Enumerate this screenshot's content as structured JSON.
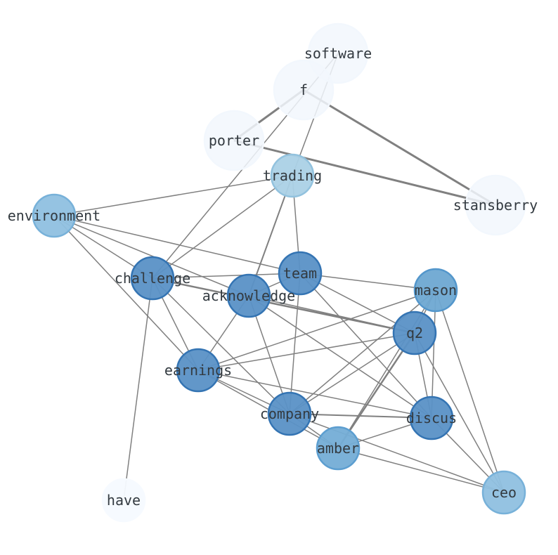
{
  "nodes": [
    {
      "id": "software",
      "label": "software",
      "color": "#f2f7fd",
      "stroke": "#f2f7fd",
      "size": "large"
    },
    {
      "id": "f",
      "label": "f",
      "color": "#f2f7fd",
      "stroke": "#f2f7fd",
      "size": "large"
    },
    {
      "id": "porter",
      "label": "porter",
      "color": "#f2f7fd",
      "stroke": "#f2f7fd",
      "size": "large"
    },
    {
      "id": "trading",
      "label": "trading",
      "color": "#abd1e6",
      "stroke": "#92c2de",
      "size": "small"
    },
    {
      "id": "stansberry",
      "label": "stansberry",
      "color": "#f2f7fd",
      "stroke": "#f2f7fd",
      "size": "large"
    },
    {
      "id": "environment",
      "label": "environment",
      "color": "#8fc0e0",
      "stroke": "#77b1d9",
      "size": "small"
    },
    {
      "id": "challenge",
      "label": "challenge",
      "color": "#5a91c6",
      "stroke": "#3474b3",
      "size": "small"
    },
    {
      "id": "team",
      "label": "team",
      "color": "#5a91c6",
      "stroke": "#3474b3",
      "size": "small"
    },
    {
      "id": "acknowledge",
      "label": "acknowledge",
      "color": "#5a91c6",
      "stroke": "#3474b3",
      "size": "small"
    },
    {
      "id": "mason",
      "label": "mason",
      "color": "#6ea8d2",
      "stroke": "#5396cb",
      "size": "small"
    },
    {
      "id": "q2",
      "label": "q2",
      "color": "#5a91c6",
      "stroke": "#3474b3",
      "size": "small"
    },
    {
      "id": "earnings",
      "label": "earnings",
      "color": "#5a91c6",
      "stroke": "#3474b3",
      "size": "small"
    },
    {
      "id": "company",
      "label": "company",
      "color": "#5a91c6",
      "stroke": "#3474b3",
      "size": "small"
    },
    {
      "id": "discus",
      "label": "discus",
      "color": "#5a91c6",
      "stroke": "#3474b3",
      "size": "small"
    },
    {
      "id": "amber",
      "label": "amber",
      "color": "#74add6",
      "stroke": "#5c9ed0",
      "size": "small"
    },
    {
      "id": "ceo",
      "label": "ceo",
      "color": "#8fc0e0",
      "stroke": "#77b1d9",
      "size": "small"
    },
    {
      "id": "have",
      "label": "have",
      "color": "#f6faff",
      "stroke": "#f6faff",
      "size": "small"
    }
  ],
  "edges": [
    [
      "f",
      "porter",
      3
    ],
    [
      "f",
      "stansberry",
      3
    ],
    [
      "porter",
      "stansberry",
      3
    ],
    [
      "software",
      "challenge",
      1.5
    ],
    [
      "software",
      "trading",
      1.5
    ],
    [
      "trading",
      "environment",
      1.5
    ],
    [
      "trading",
      "challenge",
      1.5
    ],
    [
      "trading",
      "acknowledge",
      2
    ],
    [
      "trading",
      "team",
      1.5
    ],
    [
      "environment",
      "team",
      1.5
    ],
    [
      "environment",
      "acknowledge",
      1.5
    ],
    [
      "environment",
      "challenge",
      1.5
    ],
    [
      "environment",
      "earnings",
      1.5
    ],
    [
      "challenge",
      "team",
      1.5
    ],
    [
      "challenge",
      "q2",
      2.5
    ],
    [
      "challenge",
      "earnings",
      1.5
    ],
    [
      "challenge",
      "company",
      1.5
    ],
    [
      "challenge",
      "have",
      1.5
    ],
    [
      "team",
      "acknowledge",
      1.5
    ],
    [
      "team",
      "mason",
      1.5
    ],
    [
      "team",
      "q2",
      1.5
    ],
    [
      "team",
      "discus",
      1.5
    ],
    [
      "team",
      "company",
      1.5
    ],
    [
      "acknowledge",
      "earnings",
      1.5
    ],
    [
      "acknowledge",
      "company",
      1.5
    ],
    [
      "acknowledge",
      "discus",
      1.5
    ],
    [
      "acknowledge",
      "q2",
      1.5
    ],
    [
      "mason",
      "earnings",
      1.5
    ],
    [
      "mason",
      "company",
      1.5
    ],
    [
      "mason",
      "q2",
      1.5
    ],
    [
      "mason",
      "discus",
      1.5
    ],
    [
      "mason",
      "ceo",
      1.5
    ],
    [
      "mason",
      "amber",
      1.5
    ],
    [
      "q2",
      "earnings",
      1.5
    ],
    [
      "q2",
      "company",
      1.5
    ],
    [
      "q2",
      "amber",
      2.5
    ],
    [
      "q2",
      "discus",
      1.5
    ],
    [
      "q2",
      "ceo",
      1.5
    ],
    [
      "earnings",
      "company",
      1.5
    ],
    [
      "earnings",
      "amber",
      1.5
    ],
    [
      "earnings",
      "discus",
      1.5
    ],
    [
      "company",
      "discus",
      2
    ],
    [
      "company",
      "amber",
      1.5
    ],
    [
      "company",
      "ceo",
      1.5
    ],
    [
      "discus",
      "amber",
      1.5
    ],
    [
      "discus",
      "ceo",
      1.5
    ],
    [
      "amber",
      "ceo",
      1.5
    ]
  ],
  "edge_color": "#808080"
}
